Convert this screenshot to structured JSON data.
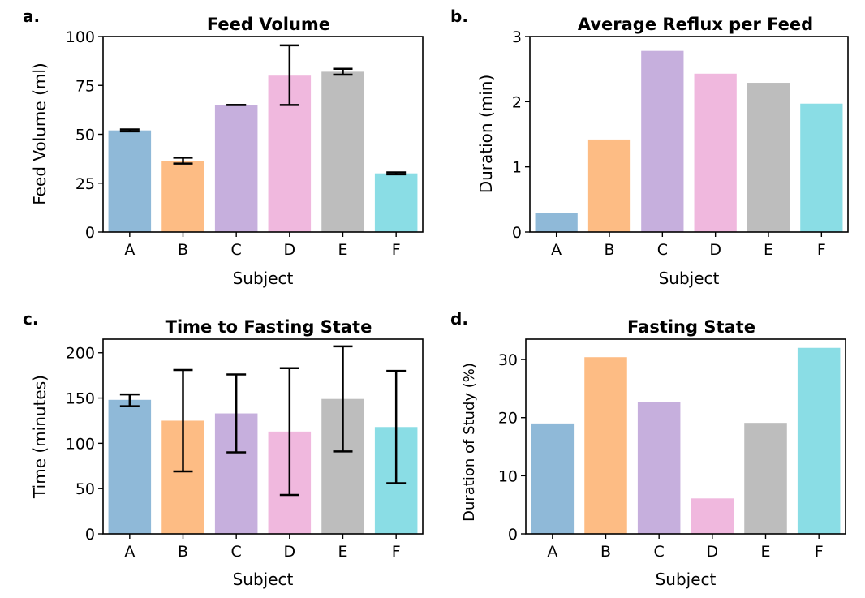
{
  "chart_data": [
    {
      "type": "bar",
      "panel_label": "a.",
      "title": "Feed Volume",
      "xlabel": "Subject",
      "ylabel": "Feed Volume (ml)",
      "categories": [
        "A",
        "B",
        "C",
        "D",
        "E",
        "F"
      ],
      "values": [
        52,
        36.5,
        65,
        80,
        82,
        30
      ],
      "error_low": [
        51.5,
        35,
        65,
        65,
        80.5,
        29.5
      ],
      "error_high": [
        52.5,
        38,
        65,
        95.5,
        83.5,
        30.5
      ],
      "ylim": [
        0,
        100
      ],
      "yticks": [
        0,
        25,
        50,
        75,
        100
      ],
      "grid": false,
      "colors": [
        "#8fb9d8",
        "#fdbc84",
        "#c6afdd",
        "#f0b8de",
        "#bdbdbd",
        "#8adde5"
      ]
    },
    {
      "type": "bar",
      "panel_label": "b.",
      "title": "Average Reflux per Feed",
      "xlabel": "Subject",
      "ylabel": "Duration (min)",
      "categories": [
        "A",
        "B",
        "C",
        "D",
        "E",
        "F"
      ],
      "values": [
        0.29,
        1.42,
        2.78,
        2.43,
        2.29,
        1.97
      ],
      "ylim": [
        0,
        3
      ],
      "yticks": [
        0,
        1,
        2,
        3
      ],
      "grid": false,
      "colors": [
        "#8fb9d8",
        "#fdbc84",
        "#c6afdd",
        "#f0b8de",
        "#bdbdbd",
        "#8adde5"
      ]
    },
    {
      "type": "bar",
      "panel_label": "c.",
      "title": "Time to Fasting State",
      "xlabel": "Subject",
      "ylabel": "Time (minutes)",
      "categories": [
        "A",
        "B",
        "C",
        "D",
        "E",
        "F"
      ],
      "values": [
        148,
        125,
        133,
        113,
        149,
        118
      ],
      "error_low": [
        141,
        69,
        90,
        43,
        91,
        56
      ],
      "error_high": [
        154,
        181,
        176,
        183,
        207,
        180
      ],
      "ylim": [
        0,
        215
      ],
      "yticks": [
        0,
        50,
        100,
        150,
        200
      ],
      "grid": false,
      "colors": [
        "#8fb9d8",
        "#fdbc84",
        "#c6afdd",
        "#f0b8de",
        "#bdbdbd",
        "#8adde5"
      ]
    },
    {
      "type": "bar",
      "panel_label": "d.",
      "title": "Fasting State",
      "xlabel": "Subject",
      "ylabel": "Duration of Study (%)",
      "categories": [
        "A",
        "B",
        "C",
        "D",
        "E",
        "F"
      ],
      "values": [
        19,
        30.4,
        22.7,
        6.1,
        19.1,
        32
      ],
      "ylim": [
        0,
        33.5
      ],
      "yticks": [
        0,
        10,
        20,
        30
      ],
      "grid": false,
      "colors": [
        "#8fb9d8",
        "#fdbc84",
        "#c6afdd",
        "#f0b8de",
        "#bdbdbd",
        "#8adde5"
      ]
    }
  ]
}
